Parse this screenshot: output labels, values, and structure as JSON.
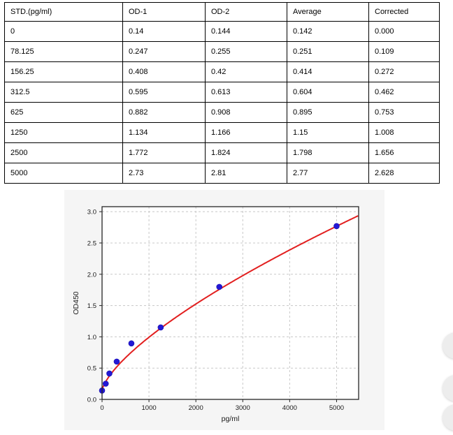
{
  "table": {
    "columns": [
      "STD.(pg/ml)",
      "OD-1",
      "OD-2",
      "Average",
      "Corrected"
    ],
    "rows": [
      [
        "0",
        "0.14",
        "0.144",
        "0.142",
        "0.000"
      ],
      [
        "78.125",
        "0.247",
        "0.255",
        "0.251",
        "0.109"
      ],
      [
        "156.25",
        "0.408",
        "0.42",
        "0.414",
        "0.272"
      ],
      [
        "312.5",
        "0.595",
        "0.613",
        "0.604",
        "0.462"
      ],
      [
        "625",
        "0.882",
        "0.908",
        "0.895",
        "0.753"
      ],
      [
        "1250",
        "1.134",
        "1.166",
        "1.15",
        "1.008"
      ],
      [
        "2500",
        "1.772",
        "1.824",
        "1.798",
        "1.656"
      ],
      [
        "5000",
        "2.73",
        "2.81",
        "2.77",
        "2.628"
      ]
    ]
  },
  "chart_data": {
    "type": "scatter",
    "title": "",
    "xlabel": "pg/ml",
    "ylabel": "OD450",
    "xlim": [
      0,
      5470
    ],
    "ylim": [
      0,
      3.08
    ],
    "xticks": [
      0,
      1000,
      2000,
      3000,
      4000,
      5000
    ],
    "yticks": [
      0,
      0.5,
      1,
      1.5,
      2,
      2.5,
      3
    ],
    "grid": "dashed",
    "points": {
      "name": "standard-points",
      "x": [
        0,
        78.125,
        156.25,
        312.5,
        625,
        1250,
        2500,
        5000
      ],
      "y": [
        0.142,
        0.251,
        0.414,
        0.604,
        0.895,
        1.15,
        1.798,
        2.77
      ],
      "color": "#2318d6"
    },
    "fit": {
      "name": "fit-curve",
      "model": "y = c + a*x^b",
      "a": 0.00676,
      "b": 0.7,
      "c": 0.142,
      "color": "#e21f1f"
    },
    "figure_bg": "#f5f5f5",
    "plot_bg": "#ffffff",
    "grid_color": "#c8c8c8",
    "spine_color": "#262626",
    "tick_label_color": "#1a1a1a"
  },
  "floating_buttons": {
    "count": 3
  }
}
